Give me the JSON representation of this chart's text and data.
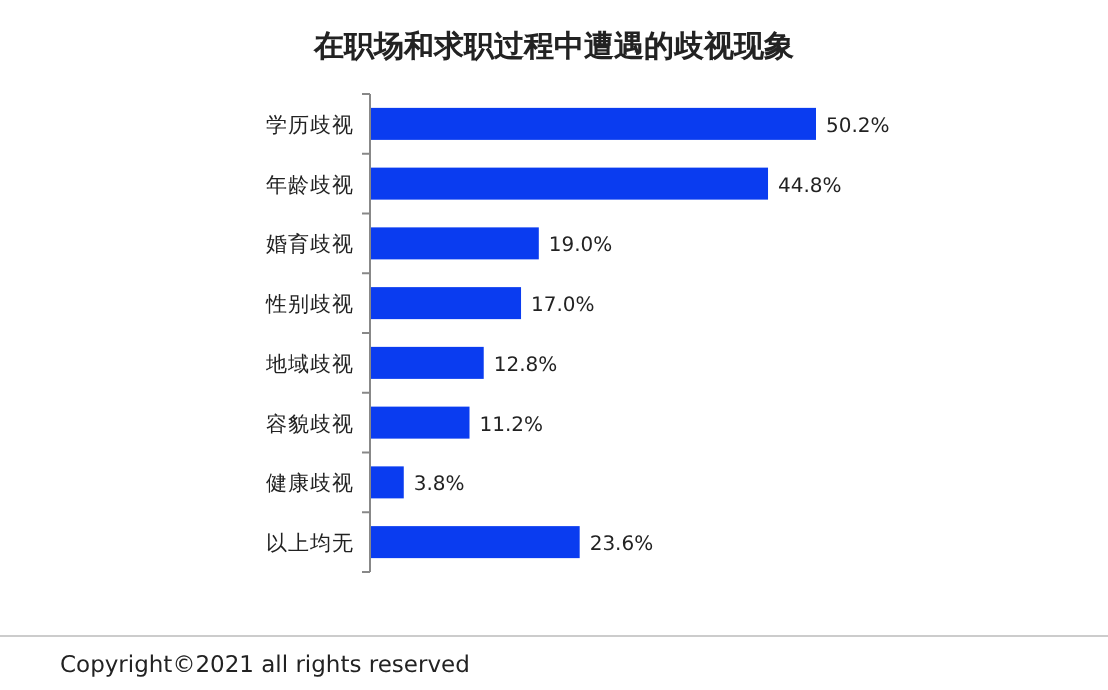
{
  "chart_data": {
    "type": "bar",
    "orientation": "horizontal",
    "title": "在职场和求职过程中遭遇的歧视现象",
    "categories": [
      "学历歧视",
      "年龄歧视",
      "婚育歧视",
      "性别歧视",
      "地域歧视",
      "容貌歧视",
      "健康歧视",
      "以上均无"
    ],
    "values": [
      50.2,
      44.8,
      19.0,
      17.0,
      12.8,
      11.2,
      3.8,
      23.6
    ],
    "value_labels": [
      "50.2%",
      "44.8%",
      "19.0%",
      "17.0%",
      "12.8%",
      "11.2%",
      "3.8%",
      "23.6%"
    ],
    "color": "#0a3cf0",
    "annotations": [
      "Copyright©2021 all rights reserved"
    ]
  }
}
